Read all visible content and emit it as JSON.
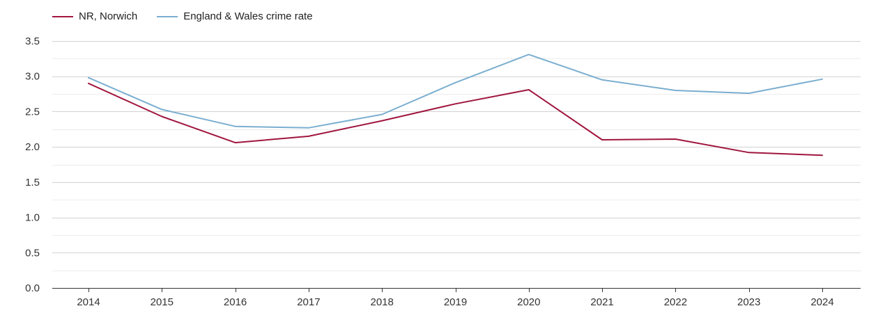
{
  "chart_data": {
    "type": "line",
    "title": "",
    "xlabel": "",
    "ylabel": "",
    "categories": [
      "2014",
      "2015",
      "2016",
      "2017",
      "2018",
      "2019",
      "2020",
      "2021",
      "2022",
      "2023",
      "2024"
    ],
    "ylim": [
      0,
      3.5
    ],
    "yticks": [
      "0.0",
      "0.5",
      "1.0",
      "1.5",
      "2.0",
      "2.5",
      "3.0",
      "3.5"
    ],
    "grid": true,
    "legend_position": "top-left",
    "series": [
      {
        "name": "NR, Norwich",
        "color": "#a0153e",
        "values": [
          2.9,
          2.43,
          2.06,
          2.15,
          2.37,
          2.61,
          2.81,
          2.1,
          2.11,
          1.92,
          1.88
        ]
      },
      {
        "name": "England & Wales crime rate",
        "color": "#7aaed0",
        "values": [
          2.98,
          2.53,
          2.29,
          2.27,
          2.46,
          2.91,
          3.31,
          2.95,
          2.8,
          2.76,
          2.96
        ]
      }
    ]
  }
}
